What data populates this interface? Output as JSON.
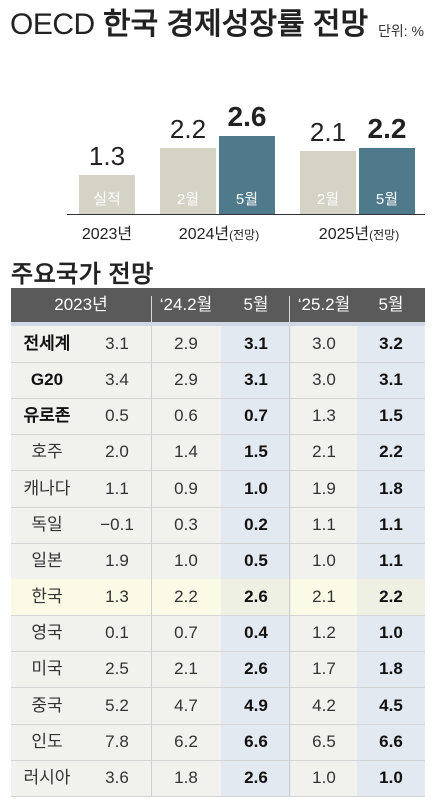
{
  "title": {
    "latin": "OECD",
    "korean": "한국 경제성장률 전망",
    "unit": "단위: %"
  },
  "colors": {
    "beige": "#d5d2c6",
    "teal": "#4f7a8c",
    "header_bg": "#5a5a5a",
    "highlight_row": "#fbfae6",
    "blue_col": "#e3e9f0"
  },
  "chart_data": {
    "type": "bar",
    "title": "OECD 한국 경제성장률 전망",
    "unit": "단위: %",
    "ylim": [
      0,
      3
    ],
    "groups": [
      {
        "label": "2023년",
        "label_suffix": "",
        "bars": [
          {
            "label": "실적",
            "value": 1.3,
            "value_text": "1.3",
            "color": "#d5d2c6",
            "bold": false
          }
        ]
      },
      {
        "label": "2024년",
        "label_suffix": "(전망)",
        "bars": [
          {
            "label": "2월",
            "value": 2.2,
            "value_text": "2.2",
            "color": "#d5d2c6",
            "bold": false
          },
          {
            "label": "5월",
            "value": 2.6,
            "value_text": "2.6",
            "color": "#4f7a8c",
            "bold": true
          }
        ]
      },
      {
        "label": "2025년",
        "label_suffix": "(전망)",
        "bars": [
          {
            "label": "2월",
            "value": 2.1,
            "value_text": "2.1",
            "color": "#d5d2c6",
            "bold": false
          },
          {
            "label": "5월",
            "value": 2.2,
            "value_text": "2.2",
            "color": "#4f7a8c",
            "bold": true
          }
        ]
      }
    ]
  },
  "table": {
    "section_title": "주요국가 전망",
    "headers": {
      "year2023": "2023년",
      "feb24": "‘24.2월",
      "may24": "5월",
      "feb25": "‘25.2월",
      "may25": "5월"
    },
    "rows": [
      {
        "name": "전세계",
        "bold_name": true,
        "highlight": false,
        "y2023": "3.1",
        "feb24": "2.9",
        "may24": "3.1",
        "feb25": "3.0",
        "may25": "3.2"
      },
      {
        "name": "G20",
        "bold_name": true,
        "highlight": false,
        "y2023": "3.4",
        "feb24": "2.9",
        "may24": "3.1",
        "feb25": "3.0",
        "may25": "3.1"
      },
      {
        "name": "유로존",
        "bold_name": true,
        "highlight": false,
        "y2023": "0.5",
        "feb24": "0.6",
        "may24": "0.7",
        "feb25": "1.3",
        "may25": "1.5"
      },
      {
        "name": "호주",
        "bold_name": false,
        "highlight": false,
        "y2023": "2.0",
        "feb24": "1.4",
        "may24": "1.5",
        "feb25": "2.1",
        "may25": "2.2"
      },
      {
        "name": "캐나다",
        "bold_name": false,
        "highlight": false,
        "y2023": "1.1",
        "feb24": "0.9",
        "may24": "1.0",
        "feb25": "1.9",
        "may25": "1.8"
      },
      {
        "name": "독일",
        "bold_name": false,
        "highlight": false,
        "y2023": "−0.1",
        "feb24": "0.3",
        "may24": "0.2",
        "feb25": "1.1",
        "may25": "1.1"
      },
      {
        "name": "일본",
        "bold_name": false,
        "highlight": false,
        "y2023": "1.9",
        "feb24": "1.0",
        "may24": "0.5",
        "feb25": "1.0",
        "may25": "1.1"
      },
      {
        "name": "한국",
        "bold_name": false,
        "highlight": true,
        "y2023": "1.3",
        "feb24": "2.2",
        "may24": "2.6",
        "feb25": "2.1",
        "may25": "2.2"
      },
      {
        "name": "영국",
        "bold_name": false,
        "highlight": false,
        "y2023": "0.1",
        "feb24": "0.7",
        "may24": "0.4",
        "feb25": "1.2",
        "may25": "1.0"
      },
      {
        "name": "미국",
        "bold_name": false,
        "highlight": false,
        "y2023": "2.5",
        "feb24": "2.1",
        "may24": "2.6",
        "feb25": "1.7",
        "may25": "1.8"
      },
      {
        "name": "중국",
        "bold_name": false,
        "highlight": false,
        "y2023": "5.2",
        "feb24": "4.7",
        "may24": "4.9",
        "feb25": "4.2",
        "may25": "4.5"
      },
      {
        "name": "인도",
        "bold_name": false,
        "highlight": false,
        "y2023": "7.8",
        "feb24": "6.2",
        "may24": "6.6",
        "feb25": "6.5",
        "may25": "6.6"
      },
      {
        "name": "러시아",
        "bold_name": false,
        "highlight": false,
        "y2023": "3.6",
        "feb24": "1.8",
        "may24": "2.6",
        "feb25": "1.0",
        "may25": "1.0"
      }
    ]
  }
}
